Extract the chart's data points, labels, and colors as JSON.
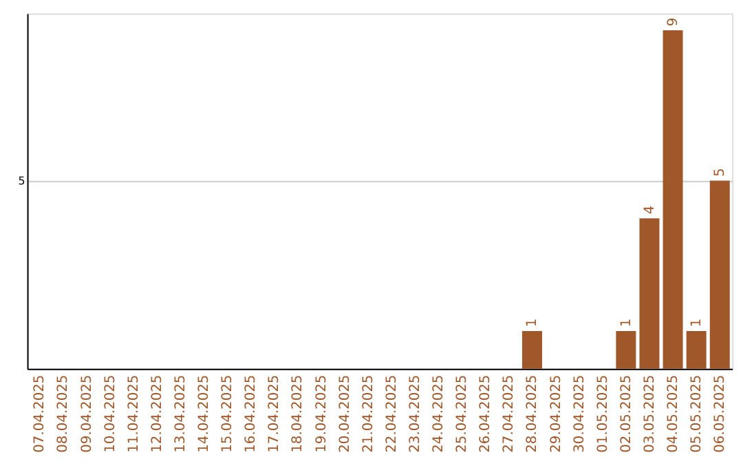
{
  "chart_data": {
    "type": "bar",
    "categories": [
      "07.04.2025",
      "08.04.2025",
      "09.04.2025",
      "10.04.2025",
      "11.04.2025",
      "12.04.2025",
      "13.04.2025",
      "14.04.2025",
      "15.04.2025",
      "16.04.2025",
      "17.04.2025",
      "18.04.2025",
      "19.04.2025",
      "20.04.2025",
      "21.04.2025",
      "22.04.2025",
      "23.04.2025",
      "24.04.2025",
      "25.04.2025",
      "26.04.2025",
      "27.04.2025",
      "28.04.2025",
      "29.04.2025",
      "30.04.2025",
      "01.05.2025",
      "02.05.2025",
      "03.05.2025",
      "04.05.2025",
      "05.05.2025",
      "06.05.2025"
    ],
    "values": [
      null,
      null,
      null,
      null,
      null,
      null,
      null,
      null,
      null,
      null,
      null,
      null,
      null,
      null,
      null,
      null,
      null,
      null,
      null,
      null,
      null,
      1,
      null,
      null,
      null,
      1,
      4,
      9,
      1,
      5
    ],
    "color": "#a0572a",
    "ylim": [
      0,
      9.45
    ],
    "yticks": [
      5
    ],
    "grid": "y",
    "data_labels": true
  }
}
